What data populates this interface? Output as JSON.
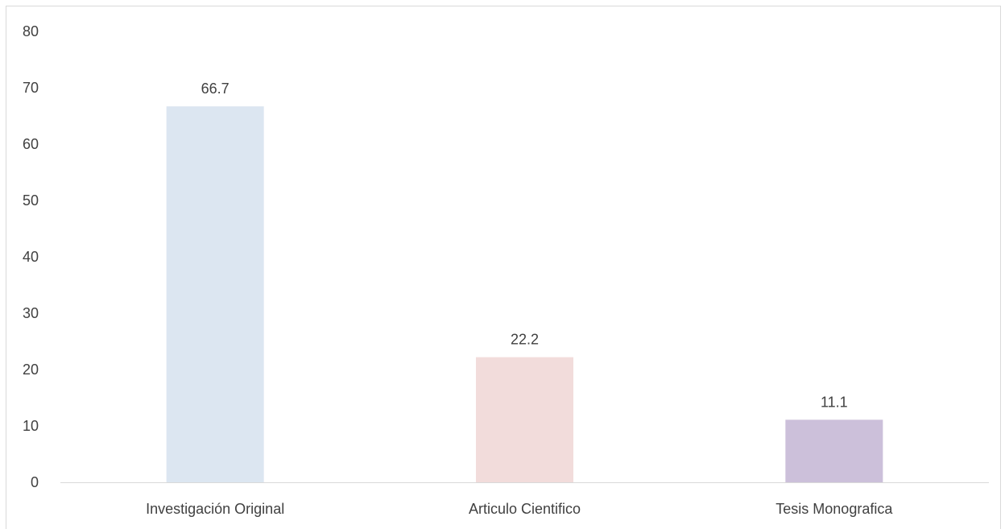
{
  "chart_data": {
    "type": "bar",
    "title": "",
    "xlabel": "",
    "ylabel": "",
    "categories": [
      "Investigación Original",
      "Articulo Cientifico",
      "Tesis Monografica"
    ],
    "values": [
      66.7,
      22.2,
      11.1
    ],
    "data_labels": [
      "66.7",
      "22.2",
      "11.1"
    ],
    "bar_colors": [
      "#dce6f1",
      "#f2dcdb",
      "#ccc0da"
    ],
    "ylim": [
      0,
      80
    ],
    "yticks": [
      0,
      10,
      20,
      30,
      40,
      50,
      60,
      70,
      80
    ],
    "grid": false,
    "legend": "none",
    "axis_color": "#d9d9d9",
    "text_color": "#404040"
  }
}
